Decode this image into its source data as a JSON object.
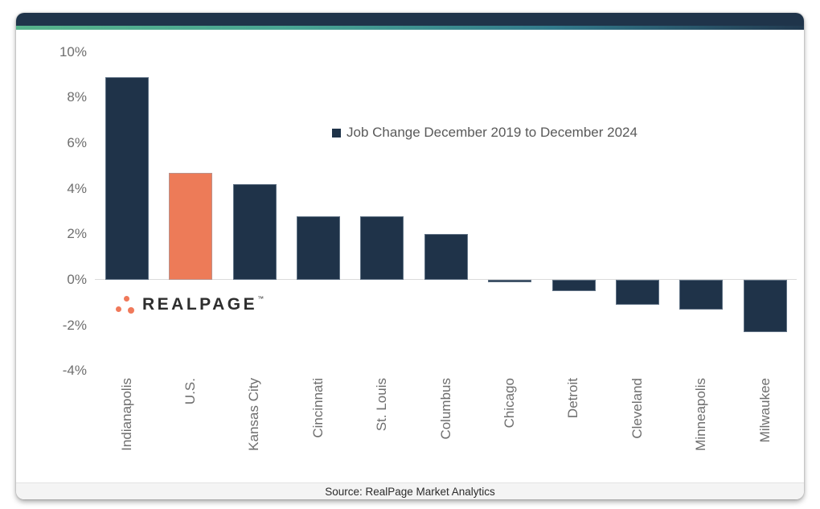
{
  "legend": {
    "label": "Job Change December 2019 to December 2024"
  },
  "footer": {
    "source_text": "Source: RealPage Market Analytics"
  },
  "logo": {
    "text": "REALPAGE",
    "mark": "™"
  },
  "chart_data": {
    "type": "bar",
    "title": "",
    "legend_label": "Job Change December 2019 to December 2024",
    "categories": [
      "Indianapolis",
      "U.S.",
      "Kansas City",
      "Cincinnati",
      "St. Louis",
      "Columbus",
      "Chicago",
      "Detroit",
      "Cleveland",
      "Minneapolis",
      "Milwaukee"
    ],
    "values": [
      8.9,
      4.7,
      4.2,
      2.8,
      2.8,
      2.0,
      -0.1,
      -0.5,
      -1.1,
      -1.3,
      -2.3
    ],
    "unit": "%",
    "highlight_index": 1,
    "highlight_category": "U.S.",
    "xlabel": "",
    "ylabel": "",
    "ylim": [
      -4,
      10
    ],
    "grid": "baseline-only",
    "legend_position": "inside-upper-middle",
    "y_axis": {
      "ticks": [
        {
          "label": "10%",
          "value": 10
        },
        {
          "label": "8%",
          "value": 8
        },
        {
          "label": "6%",
          "value": 6
        },
        {
          "label": "4%",
          "value": 4
        },
        {
          "label": "2%",
          "value": 2
        },
        {
          "label": "0%",
          "value": 0
        },
        {
          "label": "-2%",
          "value": -2
        },
        {
          "label": "-4%",
          "value": -4
        }
      ]
    },
    "colors": {
      "bar": "#1F3349",
      "highlight": "#ED7B58",
      "header_bar": "#1F344A",
      "accent_gradient_left": "#57B38C",
      "accent_gradient_right": "#223A50",
      "baseline": "#DBDBDB",
      "axis_text": "#6E6E6E",
      "legend_text": "#595959",
      "logo_dot": "#F0795A",
      "footer_bg": "#F4F4F4"
    }
  }
}
